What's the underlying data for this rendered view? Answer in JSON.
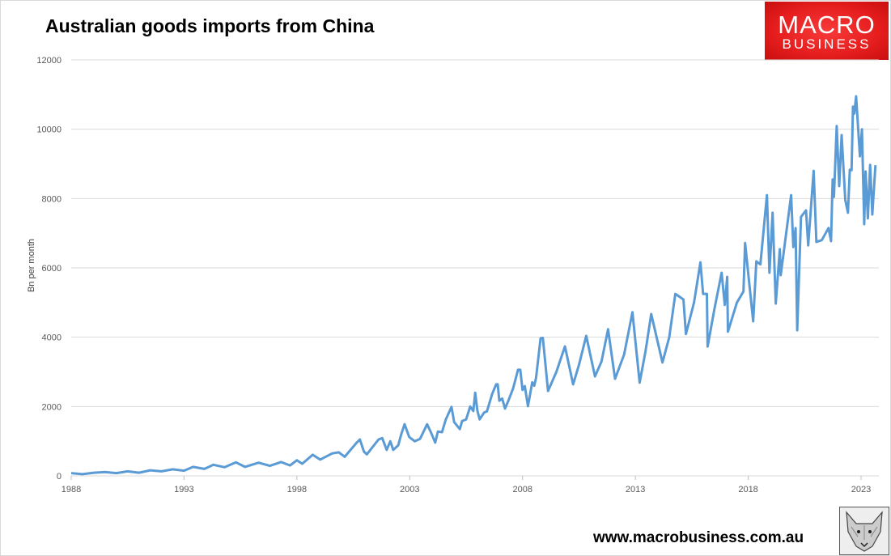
{
  "chart_data": {
    "type": "line",
    "title": "Australian goods imports from China",
    "xlabel": "",
    "ylabel": "Bn per month",
    "ylim": [
      0,
      12000
    ],
    "yticks": [
      0,
      2000,
      4000,
      6000,
      8000,
      10000,
      12000
    ],
    "xticks": [
      1988,
      1993,
      1998,
      2003,
      2008,
      2013,
      2018,
      2023
    ],
    "grid": "horizontal",
    "line_color": "#5b9bd5",
    "series": [
      {
        "x": [
          1988.0,
          1988.5,
          1989.0,
          1989.5,
          1990.0,
          1990.5,
          1991.0,
          1991.5,
          1992.0,
          1992.5,
          1993.0,
          1993.4,
          1993.9,
          1994.3,
          1994.8,
          1995.3,
          1995.7,
          1996.3,
          1996.8,
          1997.3,
          1997.7,
          1998.0,
          1998.24,
          1998.7,
          1999.03,
          1999.57,
          1999.86,
          2000.12,
          2000.65,
          2000.79,
          2000.97,
          2001.1,
          2001.62,
          2001.78,
          2001.98,
          2002.14,
          2002.27,
          2002.49,
          2002.62,
          2002.77,
          2002.98,
          2003.22,
          2003.46,
          2003.77,
          2003.95,
          2004.13,
          2004.25,
          2004.43,
          2004.6,
          2004.85,
          2004.97,
          2005.22,
          2005.32,
          2005.5,
          2005.68,
          2005.82,
          2005.9,
          2006.0,
          2006.1,
          2006.3,
          2006.42,
          2006.65,
          2006.83,
          2006.9,
          2006.97,
          2007.1,
          2007.22,
          2007.38,
          2007.58,
          2007.8,
          2007.9,
          2008.0,
          2008.1,
          2008.24,
          2008.43,
          2008.52,
          2008.6,
          2008.8,
          2008.9,
          2009.13,
          2009.5,
          2009.88,
          2010.24,
          2010.5,
          2010.82,
          2011.21,
          2011.5,
          2011.79,
          2012.1,
          2012.5,
          2012.87,
          2013.19,
          2013.45,
          2013.7,
          2014.2,
          2014.5,
          2014.77,
          2015.13,
          2015.24,
          2015.6,
          2015.88,
          2016.0,
          2016.17,
          2016.2,
          2016.5,
          2016.82,
          2016.96,
          2017.07,
          2017.1,
          2017.5,
          2017.79,
          2017.86,
          2018.22,
          2018.36,
          2018.54,
          2018.83,
          2018.94,
          2019.08,
          2019.22,
          2019.4,
          2019.44,
          2019.62,
          2019.9,
          2020.0,
          2020.1,
          2020.17,
          2020.34,
          2020.56,
          2020.66,
          2020.9,
          2021.02,
          2021.26,
          2021.56,
          2021.67,
          2021.74,
          2021.8,
          2021.92,
          2022.03,
          2022.14,
          2022.3,
          2022.42,
          2022.5,
          2022.58,
          2022.64,
          2022.7,
          2022.78,
          2022.95,
          2023.04,
          2023.14,
          2023.2,
          2023.3,
          2023.4,
          2023.5,
          2023.64
        ],
        "values": [
          80,
          50,
          90,
          110,
          80,
          130,
          90,
          160,
          130,
          190,
          150,
          260,
          200,
          320,
          250,
          390,
          260,
          380,
          290,
          400,
          300,
          450,
          350,
          610,
          470,
          650,
          680,
          550,
          960,
          1050,
          700,
          620,
          1050,
          1090,
          750,
          1000,
          750,
          880,
          1190,
          1490,
          1120,
          1000,
          1070,
          1490,
          1240,
          960,
          1280,
          1260,
          1630,
          1990,
          1550,
          1350,
          1580,
          1630,
          2000,
          1870,
          2400,
          1880,
          1630,
          1830,
          1860,
          2360,
          2640,
          2640,
          2170,
          2230,
          1940,
          2180,
          2520,
          3060,
          3060,
          2480,
          2590,
          2010,
          2700,
          2600,
          2830,
          3970,
          3980,
          2450,
          3000,
          3735,
          2640,
          3200,
          4040,
          2870,
          3300,
          4230,
          2800,
          3500,
          4720,
          2690,
          3600,
          4670,
          3270,
          4000,
          5250,
          5090,
          4090,
          5000,
          6160,
          5250,
          5250,
          3730,
          4800,
          5860,
          4930,
          5740,
          4160,
          5000,
          5320,
          6720,
          4460,
          6190,
          6100,
          8100,
          5860,
          7590,
          4970,
          6540,
          5790,
          6680,
          8100,
          6600,
          7150,
          4200,
          7470,
          7660,
          6650,
          8800,
          6750,
          6800,
          7150,
          6770,
          8550,
          8050,
          10090,
          8360,
          9830,
          7960,
          7590,
          8830,
          8820,
          10650,
          10450,
          10950,
          9220,
          10000,
          7260,
          8780,
          7430,
          8970,
          7540,
          8960
        ]
      }
    ]
  },
  "logo": {
    "line1": "MACRO",
    "line2": "BUSINESS"
  },
  "footer": {
    "url": "www.macrobusiness.com.au",
    "mascot": "wolf-sketch"
  }
}
